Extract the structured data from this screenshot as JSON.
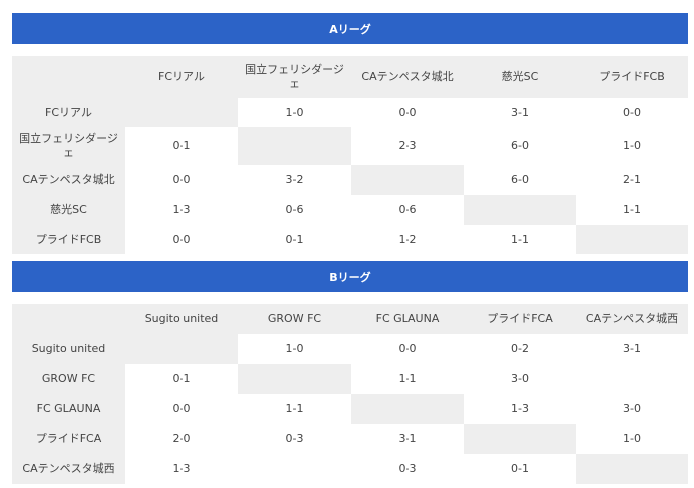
{
  "leagues": [
    {
      "title": "Aリーグ",
      "teams": [
        "FCリアル",
        "国立フェリシダージェ",
        "CAテンペスタ城北",
        "慈光SC",
        "プライドFCB"
      ],
      "results": [
        [
          "",
          "1-0",
          "0-0",
          "3-1",
          "0-0"
        ],
        [
          "0-1",
          "",
          "2-3",
          "6-0",
          "1-0"
        ],
        [
          "0-0",
          "3-2",
          "",
          "6-0",
          "2-1"
        ],
        [
          "1-3",
          "0-6",
          "0-6",
          "",
          "1-1"
        ],
        [
          "0-0",
          "0-1",
          "1-2",
          "1-1",
          ""
        ]
      ]
    },
    {
      "title": "Bリーグ",
      "teams": [
        "Sugito united",
        "GROW FC",
        "FC GLAUNA",
        "プライドFCA",
        "CAテンペスタ城西"
      ],
      "results": [
        [
          "",
          "1-0",
          "0-0",
          "0-2",
          "3-1"
        ],
        [
          "0-1",
          "",
          "1-1",
          "3-0",
          ""
        ],
        [
          "0-0",
          "1-1",
          "",
          "1-3",
          "3-0"
        ],
        [
          "2-0",
          "0-3",
          "3-1",
          "",
          "1-0"
        ],
        [
          "1-3",
          "",
          "0-3",
          "0-1",
          ""
        ]
      ]
    }
  ],
  "colors": {
    "banner": "#2c63c7",
    "header_bg": "#eeeeee",
    "diagonal_bg": "#eeeeee",
    "text": "#444444"
  }
}
